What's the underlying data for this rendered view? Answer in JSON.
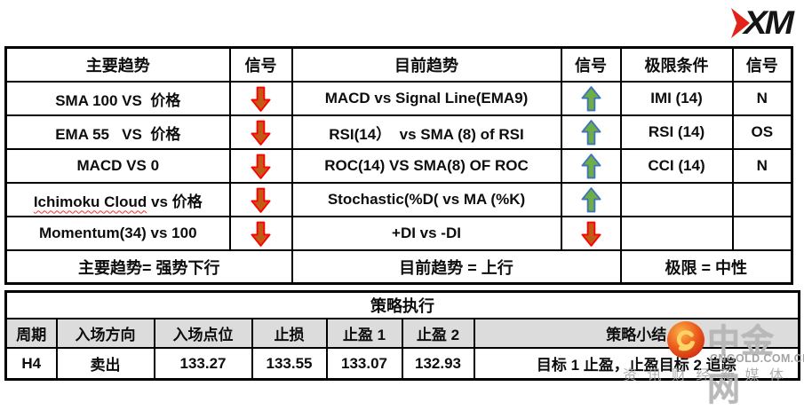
{
  "logo": {
    "text": "XM"
  },
  "top_table": {
    "headers": [
      "主要趋势",
      "信号",
      "目前趋势",
      "信号",
      "极限条件",
      "信号"
    ],
    "rows": [
      {
        "main_wavy": "",
        "main": "SMA 100 VS  价格",
        "main_signal": "down",
        "current": "MACD vs Signal Line(EMA9)",
        "current_signal": "up",
        "extreme": "IMI (14)",
        "extreme_signal": "N"
      },
      {
        "main_wavy": "",
        "main": "EMA 55   VS  价格",
        "main_signal": "down",
        "current": "RSI(14）  vs SMA (8) of RSI",
        "current_signal": "up",
        "extreme": "RSI (14)",
        "extreme_signal": "OS"
      },
      {
        "main_wavy": "",
        "main": "MACD VS 0",
        "main_signal": "down",
        "current": "ROC(14) VS SMA(8) OF ROC",
        "current_signal": "up",
        "extreme": "CCI (14)",
        "extreme_signal": "N"
      },
      {
        "main_wavy": "Ichimoku Cloud",
        "main": " vs 价格",
        "main_signal": "down",
        "current": "Stochastic(%D( vs MA (%K)",
        "current_signal": "up",
        "extreme": "",
        "extreme_signal": ""
      },
      {
        "main_wavy": "",
        "main": "Momentum(34) vs 100",
        "main_signal": "down",
        "current": "+DI vs -DI",
        "current_signal": "down",
        "extreme": "",
        "extreme_signal": ""
      }
    ],
    "summary": [
      "主要趋势= 强势下行",
      "目前趋势 = 上行",
      "极限 = 中性"
    ]
  },
  "strategy_table": {
    "title": "策略执行",
    "headers": [
      "周期",
      "入场方向",
      "入场点位",
      "止损",
      "止盈 1",
      "止盈 2",
      "策略小结"
    ],
    "row": [
      "H4",
      "卖出",
      "133.27",
      "133.55",
      "133.07",
      "132.93",
      "目标 1 止盈，止盈目标 2 追踪"
    ]
  },
  "watermark": {
    "brand": "中金网",
    "domain": "CNGOLD.COM.CN",
    "slogan": "资讯财经新媒体"
  },
  "colors": {
    "up_fill": "#6FAE46",
    "up_stroke": "#3E74B8",
    "down_fill": "#BF5B17",
    "down_stroke": "#FF0000",
    "strategy_header_bg": "#DCDCDC",
    "logo_red": "#E2231A"
  }
}
